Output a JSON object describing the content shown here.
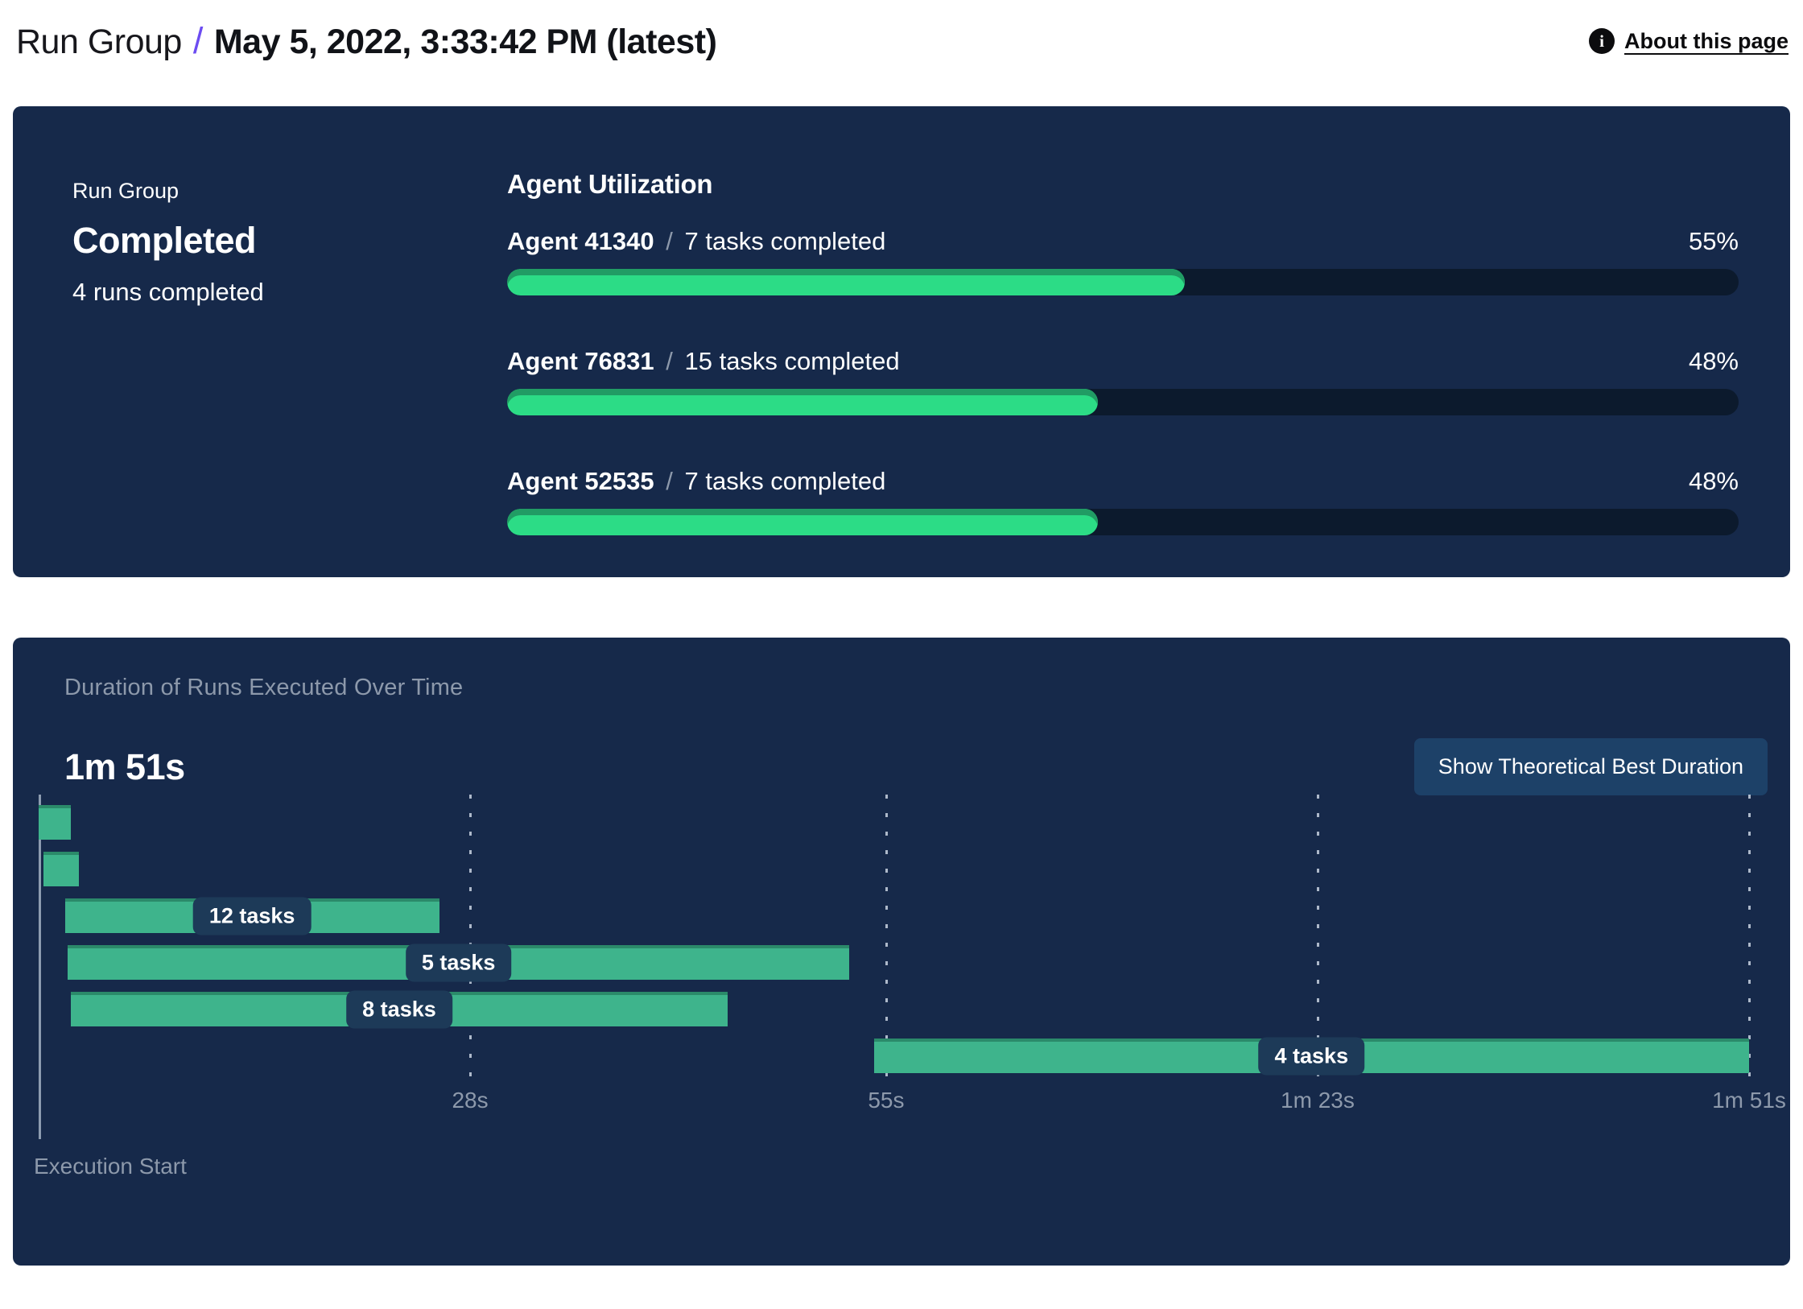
{
  "header": {
    "breadcrumb_root": "Run Group",
    "separator": "/",
    "title": "May 5, 2022, 3:33:42 PM (latest)",
    "about_link": "About this page",
    "info_icon_glyph": "i"
  },
  "summary": {
    "label": "Run Group",
    "status": "Completed",
    "runs_completed": "4 runs completed"
  },
  "agent_utilization": {
    "title": "Agent Utilization",
    "separator": "/",
    "agents": [
      {
        "name": "Agent 41340",
        "tasks": "7 tasks completed",
        "percent": 55,
        "percent_label": "55%"
      },
      {
        "name": "Agent 76831",
        "tasks": "15 tasks completed",
        "percent": 48,
        "percent_label": "48%"
      },
      {
        "name": "Agent 52535",
        "tasks": "7 tasks completed",
        "percent": 48,
        "percent_label": "48%"
      }
    ]
  },
  "duration_chart": {
    "title": "Duration of Runs Executed Over Time",
    "total_duration": "1m 51s",
    "button_label": "Show Theoretical Best Duration",
    "execution_start_label": "Execution Start"
  },
  "chart_data": [
    {
      "type": "bar",
      "title": "Agent Utilization",
      "categories": [
        "Agent 41340",
        "Agent 76831",
        "Agent 52535"
      ],
      "values": [
        55,
        48,
        48
      ],
      "unit": "%",
      "xlim": [
        0,
        100
      ]
    },
    {
      "type": "gantt",
      "title": "Duration of Runs Executed Over Time",
      "x_max_s": 111,
      "x_axis_label": "Execution Start",
      "ticks": [
        {
          "s": 28,
          "label": "28s"
        },
        {
          "s": 55,
          "label": "55s"
        },
        {
          "s": 83,
          "label": "1m 23s"
        },
        {
          "s": 111,
          "label": "1m 51s"
        }
      ],
      "runs": [
        {
          "label": "",
          "start_s": 0,
          "end_s": 2.1
        },
        {
          "label": "",
          "start_s": 0.3,
          "end_s": 2.6
        },
        {
          "label": "12 tasks",
          "start_s": 1.7,
          "end_s": 26.0
        },
        {
          "label": "5 tasks",
          "start_s": 1.9,
          "end_s": 52.6
        },
        {
          "label": "8 tasks",
          "start_s": 2.1,
          "end_s": 44.7
        },
        {
          "label": "4 tasks",
          "start_s": 54.2,
          "end_s": 111
        }
      ]
    }
  ],
  "colors": {
    "panel_bg": "#16294a",
    "accent_purple": "#6c4cf1",
    "progress_green": "#2cdc86",
    "progress_green_ridge": "#219c64",
    "progress_track": "#0c1a2d",
    "gantt_green": "#3eb48c",
    "label_pill_bg": "#1d3a58",
    "button_bg": "#1d4168",
    "muted_text": "#8d99ab",
    "axis_line": "#a2b0c2"
  }
}
